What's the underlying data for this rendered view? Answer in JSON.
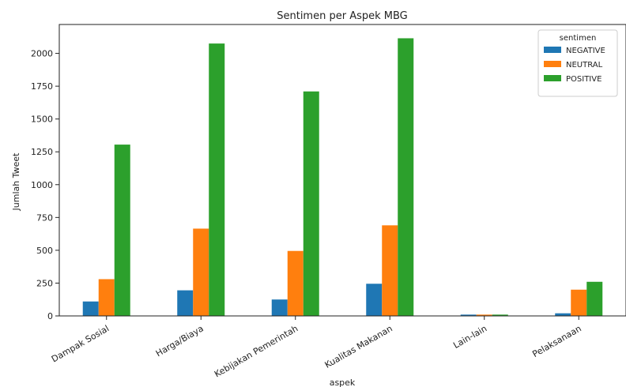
{
  "chart_data": {
    "type": "bar",
    "title": "Sentimen per Aspek MBG",
    "xlabel": "aspek",
    "ylabel": "Jumlah Tweet",
    "categories": [
      "Dampak Sosial",
      "Harga/Biaya",
      "Kebijakan Pemerintah",
      "Kualitas Makanan",
      "Lain-lain",
      "Pelaksanaan"
    ],
    "series": [
      {
        "name": "NEGATIVE",
        "color": "#1f77b4",
        "values": [
          110,
          195,
          125,
          245,
          10,
          20
        ]
      },
      {
        "name": "NEUTRAL",
        "color": "#ff7f0e",
        "values": [
          280,
          665,
          495,
          690,
          10,
          200
        ]
      },
      {
        "name": "POSITIVE",
        "color": "#2ca02c",
        "values": [
          1305,
          2075,
          1710,
          2115,
          10,
          260
        ]
      }
    ],
    "yticks": [
      0,
      250,
      500,
      750,
      1000,
      1250,
      1500,
      1750,
      2000
    ],
    "ylim": [
      0,
      2220
    ],
    "legend": {
      "title": "sentimen",
      "position": "top-right"
    },
    "grid": false
  }
}
